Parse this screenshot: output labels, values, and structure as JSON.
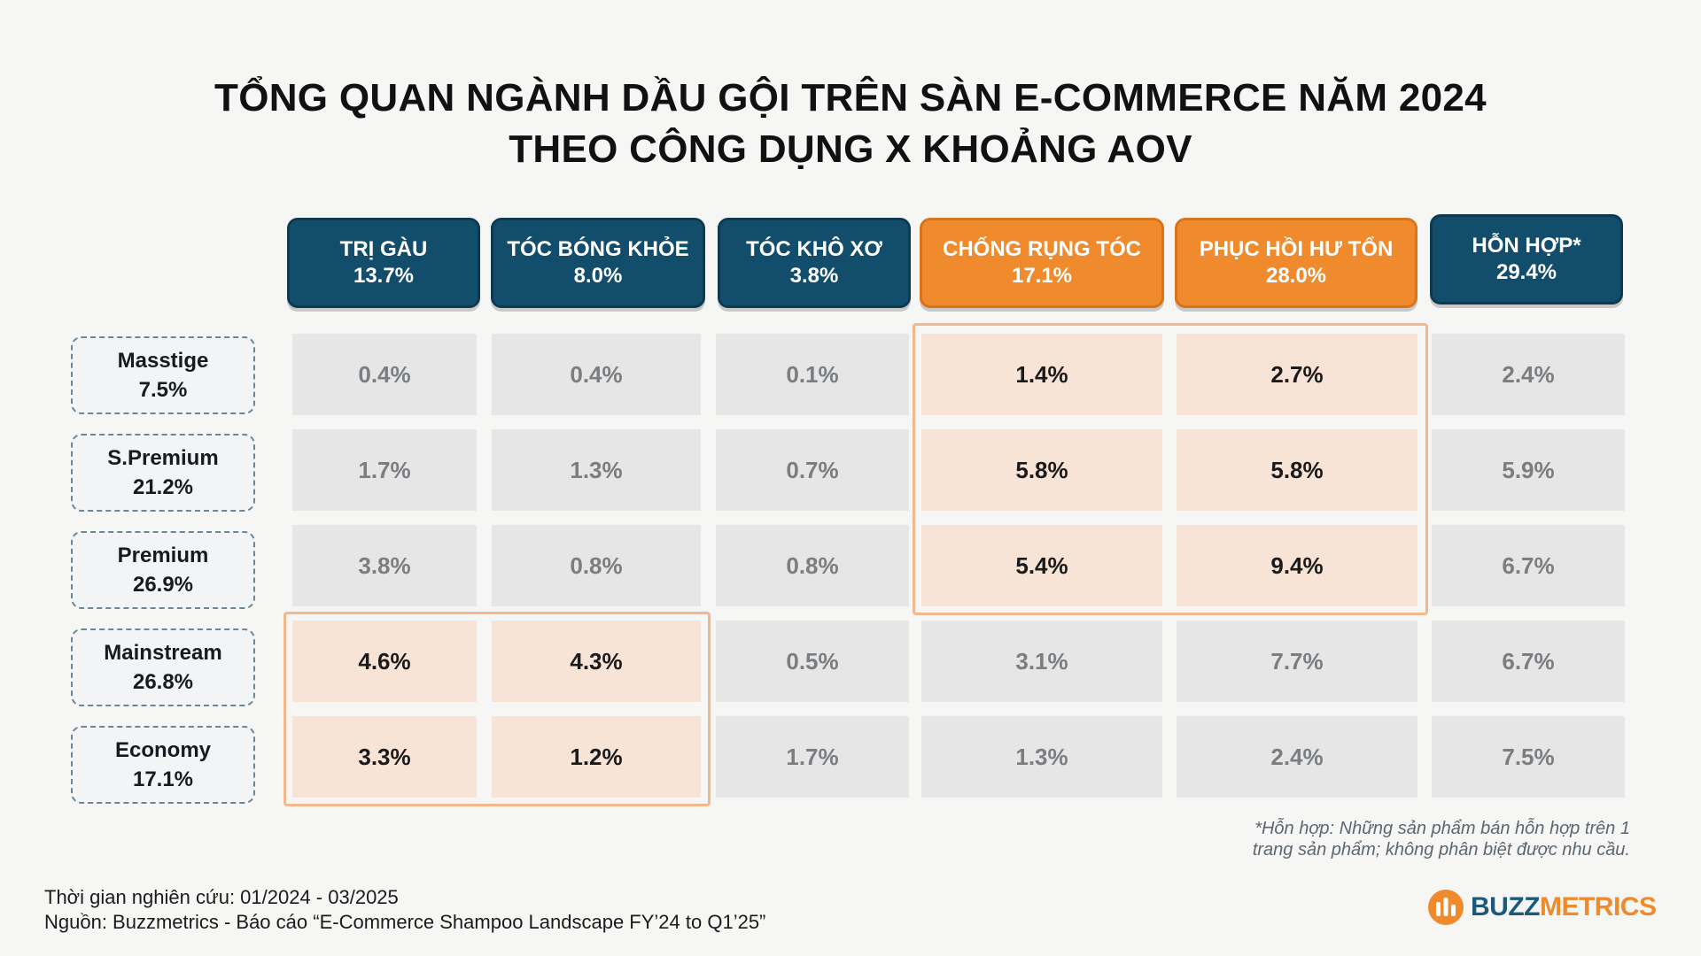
{
  "title": {
    "line1": "TỔNG QUAN NGÀNH DẦU GỘI TRÊN SÀN E-COMMERCE NĂM 2024",
    "line2": "THEO CÔNG DỤNG X KHOẢNG AOV"
  },
  "colors": {
    "header_blue": "#124e6b",
    "header_orange": "#ef8b2c",
    "highlight_cell": "#f8e4d6",
    "highlight_border": "#f3b98c",
    "gray_cell": "#e6e6e6"
  },
  "chart_data": {
    "type": "table",
    "columns": [
      {
        "label": "TRỊ GÀU",
        "share": "13.7%"
      },
      {
        "label": "TÓC BÓNG KHỎE",
        "share": "8.0%"
      },
      {
        "label": "TÓC KHÔ XƠ",
        "share": "3.8%"
      },
      {
        "label": "CHỐNG RỤNG TÓC",
        "share": "17.1%"
      },
      {
        "label": "PHỤC HỒI HƯ TỔN",
        "share": "28.0%"
      },
      {
        "label": "HỖN HỢP*",
        "share": "29.4%"
      }
    ],
    "rows": [
      {
        "label": "Masstige",
        "share": "7.5%",
        "values": [
          "0.4%",
          "0.4%",
          "0.1%",
          "1.4%",
          "2.7%",
          "2.4%"
        ]
      },
      {
        "label": "S.Premium",
        "share": "21.2%",
        "values": [
          "1.7%",
          "1.3%",
          "0.7%",
          "5.8%",
          "5.8%",
          "5.9%"
        ]
      },
      {
        "label": "Premium",
        "share": "26.9%",
        "values": [
          "3.8%",
          "0.8%",
          "0.8%",
          "5.4%",
          "9.4%",
          "6.7%"
        ]
      },
      {
        "label": "Mainstream",
        "share": "26.8%",
        "values": [
          "4.6%",
          "4.3%",
          "0.5%",
          "3.1%",
          "7.7%",
          "6.7%"
        ]
      },
      {
        "label": "Economy",
        "share": "17.1%",
        "values": [
          "3.3%",
          "1.2%",
          "1.7%",
          "1.3%",
          "2.4%",
          "7.5%"
        ]
      }
    ],
    "highlighted_columns": [
      3,
      4
    ],
    "highlighted_rows_in_columns": {
      "3": [
        0,
        1,
        2
      ],
      "4": [
        0,
        1,
        2
      ],
      "0": [
        3,
        4
      ],
      "1": [
        3,
        4
      ]
    }
  },
  "footnote": {
    "line1": "*Hỗn hợp: Những sản phẩm bán hỗn hợp trên 1",
    "line2": "trang sản phẩm; không phân biệt được nhu cầu."
  },
  "source": {
    "period": "Thời gian nghiên cứu: 01/2024 - 03/2025",
    "citation": "Nguồn: Buzzmetrics - Báo cáo “E-Commerce Shampoo Landscape FY’24 to Q1’25”"
  },
  "logo": {
    "text_part1": "BUZZ",
    "text_part2": "METRICS",
    "color_part1": "#1b5a7a",
    "color_part2": "#ef8b2c",
    "icon": "buzzmetrics-logo-icon"
  }
}
